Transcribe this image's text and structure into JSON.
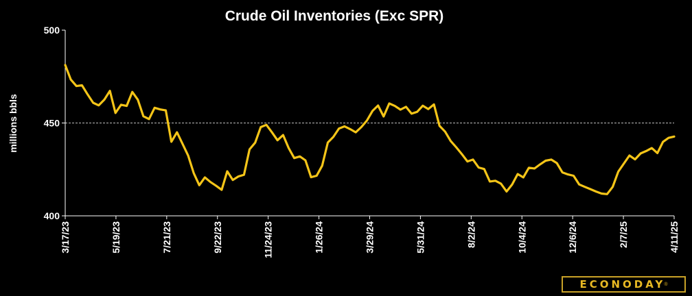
{
  "chart_data": {
    "type": "line",
    "title": "Crude Oil Inventories (Exc SPR)",
    "ylabel": "millions bbls",
    "ylim": [
      400,
      500
    ],
    "yticks": [
      "400",
      "450",
      "500"
    ],
    "xticks": [
      "3/17/23",
      "5/19/23",
      "7/21/23",
      "9/22/23",
      "11/24/23",
      "1/26/24",
      "3/29/24",
      "5/31/24",
      "8/2/24",
      "10/4/24",
      "12/6/24",
      "2/7/25",
      "4/11/25"
    ],
    "gridline_value": 450,
    "line_color": "#f5c518",
    "series": [
      {
        "values": [
          481.2,
          473.4,
          469.9,
          470.3,
          465.4,
          460.9,
          459.5,
          462.6,
          467.3,
          455.4,
          459.8,
          459.2,
          466.7,
          462.5,
          453.6,
          452.1,
          458.2,
          457.3,
          456.8,
          439.9,
          445.0,
          438.8,
          432.5,
          423.0,
          416.5,
          420.7,
          418.2,
          416.2,
          414.0,
          424.0,
          419.3,
          421.2,
          422.1,
          435.8,
          439.4,
          447.8,
          449.0,
          445.0,
          440.7,
          443.5,
          436.5,
          431.1,
          432.0,
          429.9,
          420.8,
          421.6,
          427.0,
          439.5,
          442.5,
          447.0,
          448.2,
          446.7,
          445.0,
          447.8,
          451.3,
          456.5,
          459.4,
          453.5,
          460.5,
          459.2,
          457.2,
          458.7,
          455.0,
          456.0,
          459.3,
          457.5,
          460.0,
          448.5,
          445.3,
          440.3,
          436.9,
          433.2,
          429.3,
          430.3,
          426.0,
          425.2,
          418.5,
          418.9,
          417.3,
          413.1,
          416.9,
          422.5,
          420.7,
          425.9,
          425.5,
          427.7,
          429.7,
          430.3,
          428.4,
          423.4,
          422.3,
          421.6,
          416.9,
          415.6,
          414.4,
          413.1,
          412.0,
          411.7,
          415.6,
          423.8,
          428.2,
          432.5,
          430.4,
          433.6,
          434.9,
          436.5,
          433.8,
          439.8,
          442.0,
          442.7
        ]
      }
    ]
  },
  "logo": {
    "text": "ECONODAY",
    "mark": "®"
  }
}
